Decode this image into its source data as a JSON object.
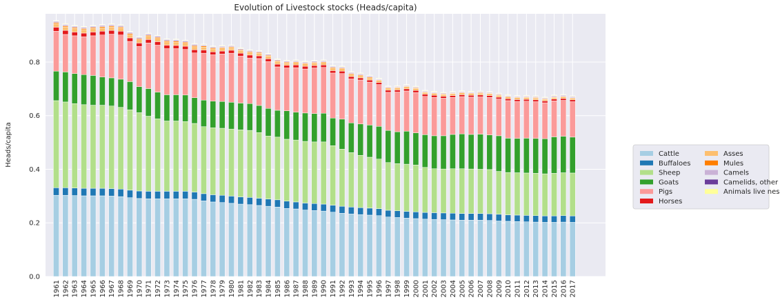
{
  "chart_data": {
    "type": "bar",
    "stacked": true,
    "title": "Evolution of Livestock stocks (Heads/capita)",
    "xlabel": "",
    "ylabel": "Heads/capita",
    "ylim": [
      0,
      0.98
    ],
    "yticks": [
      "0.0",
      "0.2",
      "0.4",
      "0.6",
      "0.8"
    ],
    "grid": true,
    "legend_position": "right",
    "categories": [
      "1961",
      "1962",
      "1963",
      "1964",
      "1965",
      "1966",
      "1967",
      "1968",
      "1969",
      "1970",
      "1971",
      "1972",
      "1973",
      "1974",
      "1975",
      "1976",
      "1977",
      "1978",
      "1979",
      "1980",
      "1981",
      "1982",
      "1983",
      "1984",
      "1985",
      "1986",
      "1987",
      "1988",
      "1989",
      "1990",
      "1991",
      "1992",
      "1993",
      "1994",
      "1995",
      "1996",
      "1997",
      "1998",
      "1999",
      "2000",
      "2001",
      "2002",
      "2003",
      "2004",
      "2005",
      "2006",
      "2007",
      "2008",
      "2009",
      "2010",
      "2011",
      "2012",
      "2013",
      "2014",
      "2015",
      "2016",
      "2017"
    ],
    "series": [
      {
        "name": "Cattle",
        "color": "#a6cee3",
        "values": [
          0.303,
          0.303,
          0.302,
          0.301,
          0.301,
          0.301,
          0.3,
          0.298,
          0.294,
          0.291,
          0.29,
          0.29,
          0.29,
          0.29,
          0.29,
          0.288,
          0.282,
          0.278,
          0.276,
          0.273,
          0.27,
          0.268,
          0.265,
          0.262,
          0.259,
          0.254,
          0.252,
          0.248,
          0.246,
          0.244,
          0.24,
          0.236,
          0.233,
          0.231,
          0.229,
          0.227,
          0.222,
          0.22,
          0.218,
          0.216,
          0.214,
          0.213,
          0.212,
          0.211,
          0.21,
          0.21,
          0.21,
          0.209,
          0.207,
          0.206,
          0.205,
          0.204,
          0.203,
          0.202,
          0.202,
          0.203,
          0.202
        ]
      },
      {
        "name": "Buffaloes",
        "color": "#1f78b4",
        "values": [
          0.028,
          0.028,
          0.028,
          0.028,
          0.028,
          0.028,
          0.028,
          0.028,
          0.028,
          0.028,
          0.028,
          0.028,
          0.028,
          0.028,
          0.028,
          0.027,
          0.027,
          0.027,
          0.027,
          0.027,
          0.027,
          0.027,
          0.027,
          0.027,
          0.027,
          0.027,
          0.026,
          0.026,
          0.026,
          0.026,
          0.026,
          0.026,
          0.026,
          0.026,
          0.026,
          0.026,
          0.025,
          0.025,
          0.025,
          0.025,
          0.025,
          0.025,
          0.025,
          0.025,
          0.025,
          0.025,
          0.025,
          0.025,
          0.025,
          0.024,
          0.024,
          0.024,
          0.024,
          0.024,
          0.024,
          0.024,
          0.024
        ]
      },
      {
        "name": "Sheep",
        "color": "#b2df8a",
        "values": [
          0.325,
          0.32,
          0.315,
          0.312,
          0.31,
          0.31,
          0.308,
          0.305,
          0.3,
          0.292,
          0.28,
          0.27,
          0.262,
          0.262,
          0.26,
          0.256,
          0.25,
          0.25,
          0.25,
          0.25,
          0.25,
          0.25,
          0.245,
          0.235,
          0.234,
          0.231,
          0.231,
          0.23,
          0.23,
          0.232,
          0.222,
          0.213,
          0.203,
          0.195,
          0.19,
          0.185,
          0.178,
          0.176,
          0.176,
          0.175,
          0.168,
          0.164,
          0.164,
          0.166,
          0.167,
          0.166,
          0.165,
          0.165,
          0.16,
          0.158,
          0.158,
          0.158,
          0.158,
          0.157,
          0.159,
          0.16,
          0.16
        ]
      },
      {
        "name": "Goats",
        "color": "#33a02c",
        "values": [
          0.11,
          0.112,
          0.112,
          0.112,
          0.111,
          0.105,
          0.105,
          0.105,
          0.105,
          0.097,
          0.103,
          0.1,
          0.098,
          0.098,
          0.099,
          0.096,
          0.099,
          0.099,
          0.1,
          0.1,
          0.1,
          0.1,
          0.101,
          0.103,
          0.1,
          0.106,
          0.104,
          0.106,
          0.106,
          0.107,
          0.103,
          0.112,
          0.111,
          0.117,
          0.12,
          0.122,
          0.12,
          0.119,
          0.123,
          0.12,
          0.122,
          0.123,
          0.124,
          0.128,
          0.13,
          0.129,
          0.131,
          0.129,
          0.133,
          0.128,
          0.128,
          0.13,
          0.13,
          0.131,
          0.136,
          0.136,
          0.134
        ]
      },
      {
        "name": "Pigs",
        "color": "#fb9a99",
        "values": [
          0.149,
          0.14,
          0.141,
          0.141,
          0.148,
          0.157,
          0.163,
          0.165,
          0.15,
          0.15,
          0.17,
          0.175,
          0.172,
          0.172,
          0.17,
          0.167,
          0.175,
          0.173,
          0.177,
          0.183,
          0.175,
          0.17,
          0.175,
          0.175,
          0.162,
          0.16,
          0.166,
          0.164,
          0.17,
          0.171,
          0.168,
          0.17,
          0.164,
          0.164,
          0.16,
          0.156,
          0.142,
          0.148,
          0.15,
          0.15,
          0.143,
          0.143,
          0.14,
          0.138,
          0.139,
          0.139,
          0.139,
          0.14,
          0.137,
          0.14,
          0.138,
          0.138,
          0.137,
          0.134,
          0.134,
          0.134,
          0.132
        ]
      },
      {
        "name": "Horses",
        "color": "#e31a1c",
        "values": [
          0.015,
          0.015,
          0.014,
          0.014,
          0.014,
          0.014,
          0.014,
          0.014,
          0.013,
          0.013,
          0.013,
          0.013,
          0.013,
          0.012,
          0.012,
          0.012,
          0.012,
          0.011,
          0.011,
          0.011,
          0.011,
          0.011,
          0.01,
          0.01,
          0.01,
          0.01,
          0.01,
          0.01,
          0.009,
          0.009,
          0.009,
          0.009,
          0.009,
          0.008,
          0.008,
          0.008,
          0.008,
          0.008,
          0.008,
          0.008,
          0.008,
          0.008,
          0.007,
          0.007,
          0.007,
          0.007,
          0.007,
          0.007,
          0.007,
          0.007,
          0.007,
          0.007,
          0.007,
          0.007,
          0.007,
          0.007,
          0.007
        ]
      },
      {
        "name": "Asses",
        "color": "#fdbf6f",
        "values": [
          0.013,
          0.013,
          0.013,
          0.013,
          0.013,
          0.013,
          0.013,
          0.012,
          0.012,
          0.012,
          0.012,
          0.012,
          0.012,
          0.012,
          0.011,
          0.011,
          0.011,
          0.011,
          0.011,
          0.01,
          0.01,
          0.01,
          0.01,
          0.01,
          0.01,
          0.009,
          0.009,
          0.009,
          0.009,
          0.009,
          0.009,
          0.009,
          0.008,
          0.008,
          0.008,
          0.008,
          0.008,
          0.008,
          0.008,
          0.008,
          0.007,
          0.007,
          0.007,
          0.007,
          0.007,
          0.007,
          0.007,
          0.007,
          0.007,
          0.007,
          0.007,
          0.007,
          0.007,
          0.006,
          0.006,
          0.006,
          0.006
        ]
      },
      {
        "name": "Mules",
        "color": "#ff7f00",
        "values": [
          0.004,
          0.004,
          0.004,
          0.004,
          0.004,
          0.004,
          0.004,
          0.004,
          0.004,
          0.004,
          0.004,
          0.004,
          0.004,
          0.004,
          0.004,
          0.004,
          0.004,
          0.004,
          0.003,
          0.003,
          0.003,
          0.003,
          0.003,
          0.003,
          0.003,
          0.003,
          0.003,
          0.003,
          0.003,
          0.003,
          0.003,
          0.003,
          0.003,
          0.003,
          0.003,
          0.002,
          0.002,
          0.002,
          0.002,
          0.002,
          0.002,
          0.002,
          0.002,
          0.002,
          0.002,
          0.002,
          0.002,
          0.002,
          0.002,
          0.002,
          0.002,
          0.002,
          0.002,
          0.002,
          0.002,
          0.002,
          0.002
        ]
      },
      {
        "name": "Camels",
        "color": "#cab2d6",
        "values": [
          0.005,
          0.005,
          0.005,
          0.005,
          0.005,
          0.005,
          0.005,
          0.005,
          0.005,
          0.005,
          0.005,
          0.005,
          0.005,
          0.005,
          0.005,
          0.005,
          0.004,
          0.004,
          0.004,
          0.004,
          0.004,
          0.004,
          0.004,
          0.004,
          0.004,
          0.004,
          0.004,
          0.004,
          0.004,
          0.004,
          0.004,
          0.004,
          0.004,
          0.004,
          0.004,
          0.003,
          0.003,
          0.003,
          0.003,
          0.003,
          0.003,
          0.003,
          0.003,
          0.003,
          0.003,
          0.003,
          0.003,
          0.003,
          0.003,
          0.003,
          0.003,
          0.003,
          0.003,
          0.003,
          0.004,
          0.004,
          0.004
        ]
      },
      {
        "name": "Camelids, other",
        "color": "#6a3d9a",
        "values": [
          0.001,
          0.001,
          0.001,
          0.001,
          0.001,
          0.001,
          0.001,
          0.001,
          0.001,
          0.001,
          0.001,
          0.001,
          0.001,
          0.001,
          0.001,
          0.001,
          0.001,
          0.001,
          0.001,
          0.001,
          0.001,
          0.001,
          0.001,
          0.001,
          0.001,
          0.001,
          0.001,
          0.001,
          0.001,
          0.001,
          0.001,
          0.001,
          0.001,
          0.001,
          0.001,
          0.001,
          0.001,
          0.001,
          0.001,
          0.001,
          0.001,
          0.001,
          0.001,
          0.001,
          0.001,
          0.001,
          0.001,
          0.001,
          0.001,
          0.001,
          0.001,
          0.001,
          0.001,
          0.001,
          0.001,
          0.001,
          0.001
        ]
      },
      {
        "name": "Animals live nes",
        "color": "#ffff99",
        "values": [
          0.002,
          0.002,
          0.002,
          0.002,
          0.002,
          0.002,
          0.002,
          0.002,
          0.002,
          0.002,
          0.002,
          0.002,
          0.002,
          0.002,
          0.002,
          0.002,
          0.002,
          0.002,
          0.002,
          0.002,
          0.002,
          0.002,
          0.002,
          0.002,
          0.002,
          0.002,
          0.002,
          0.002,
          0.002,
          0.002,
          0.002,
          0.002,
          0.002,
          0.002,
          0.002,
          0.002,
          0.002,
          0.002,
          0.002,
          0.002,
          0.002,
          0.002,
          0.002,
          0.002,
          0.002,
          0.002,
          0.002,
          0.002,
          0.002,
          0.002,
          0.002,
          0.002,
          0.002,
          0.002,
          0.002,
          0.002,
          0.002
        ]
      }
    ]
  }
}
